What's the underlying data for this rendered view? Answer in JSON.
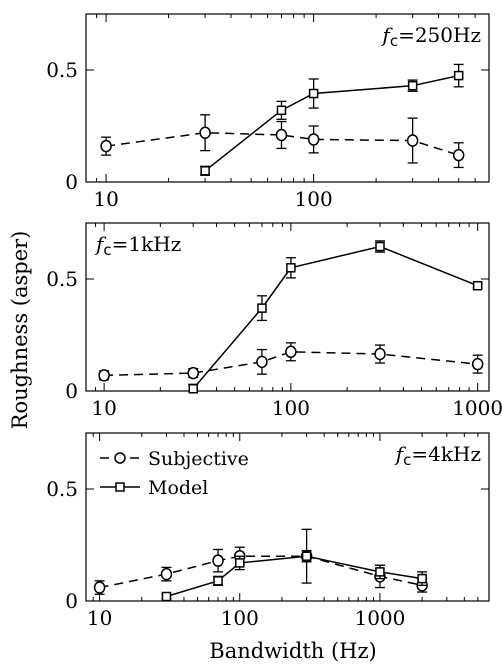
{
  "figure": {
    "ylabel": "Roughness (asper)",
    "xlabel": "Bandwidth (Hz)"
  },
  "legend": {
    "entries": [
      {
        "label": "Subjective",
        "series": "Subjective",
        "marker": "circle",
        "dash": "dashed"
      },
      {
        "label": "Model",
        "series": "Model",
        "marker": "square",
        "dash": "solid"
      }
    ],
    "placement": "top-left of bottom panel"
  },
  "colors": {
    "ink": "#000000",
    "background": "#ffffff"
  },
  "chart_data": [
    {
      "type": "line",
      "annotation": "fc=250Hz",
      "annotation_parts": {
        "f": "f",
        "sub": "c",
        "rest": "=250Hz"
      },
      "xscale": "log",
      "xlim": [
        8,
        700
      ],
      "ylim": [
        0,
        0.75
      ],
      "xticks": [
        10,
        100
      ],
      "xticklabels": [
        "10",
        "100"
      ],
      "yticks": [
        0,
        0.5
      ],
      "yticklabels": [
        "0",
        "0.5"
      ],
      "series": [
        {
          "name": "Subjective",
          "style": "dashed",
          "marker": "circle",
          "x": [
            10,
            30,
            70,
            100,
            300,
            500
          ],
          "y": [
            0.16,
            0.22,
            0.21,
            0.19,
            0.185,
            0.12
          ],
          "err": [
            0.04,
            0.08,
            0.06,
            0.06,
            0.1,
            0.055
          ]
        },
        {
          "name": "Model",
          "style": "solid",
          "marker": "square",
          "x": [
            30,
            70,
            100,
            300,
            500
          ],
          "y": [
            0.05,
            0.32,
            0.395,
            0.43,
            0.475
          ],
          "err": [
            0.02,
            0.04,
            0.065,
            0.025,
            0.05
          ]
        }
      ]
    },
    {
      "type": "line",
      "annotation": "fc=1kHz",
      "annotation_parts": {
        "f": "f",
        "sub": "c",
        "rest": "=1kHz"
      },
      "xscale": "log",
      "xlim": [
        8,
        1150
      ],
      "ylim": [
        0,
        0.75
      ],
      "xticks": [
        10,
        100,
        1000
      ],
      "xticklabels": [
        "10",
        "100",
        "1000"
      ],
      "yticks": [
        0,
        0.5
      ],
      "yticklabels": [
        "0",
        "0.5"
      ],
      "series": [
        {
          "name": "Subjective",
          "style": "dashed",
          "marker": "circle",
          "x": [
            10,
            30,
            70,
            100,
            300,
            1000
          ],
          "y": [
            0.07,
            0.08,
            0.13,
            0.175,
            0.165,
            0.12
          ],
          "err": [
            0.02,
            0.02,
            0.055,
            0.04,
            0.04,
            0.04
          ]
        },
        {
          "name": "Model",
          "style": "solid",
          "marker": "square",
          "x": [
            30,
            70,
            100,
            300,
            1000
          ],
          "y": [
            0.01,
            0.37,
            0.55,
            0.645,
            0.47
          ],
          "err": [
            0.02,
            0.055,
            0.045,
            0.025,
            0.01
          ]
        }
      ]
    },
    {
      "type": "line",
      "annotation": "fc=4kHz",
      "annotation_parts": {
        "f": "f",
        "sub": "c",
        "rest": "=4kHz"
      },
      "xscale": "log",
      "xlim": [
        8,
        6000
      ],
      "ylim": [
        0,
        0.75
      ],
      "xticks": [
        10,
        100,
        1000
      ],
      "xticklabels": [
        "10",
        "100",
        "1000"
      ],
      "yticks": [
        0,
        0.5
      ],
      "yticklabels": [
        "0",
        "0.5"
      ],
      "series": [
        {
          "name": "Subjective",
          "style": "dashed",
          "marker": "circle",
          "x": [
            10,
            30,
            70,
            100,
            300,
            1000,
            2000
          ],
          "y": [
            0.06,
            0.12,
            0.18,
            0.2,
            0.2,
            0.11,
            0.07
          ],
          "err": [
            0.03,
            0.03,
            0.05,
            0.04,
            0.12,
            0.05,
            0.03
          ]
        },
        {
          "name": "Model",
          "style": "solid",
          "marker": "square",
          "x": [
            30,
            70,
            100,
            300,
            1000,
            2000
          ],
          "y": [
            0.02,
            0.09,
            0.17,
            0.2,
            0.13,
            0.1
          ],
          "err": [
            0.01,
            0.02,
            0.03,
            0.025,
            0.03,
            0.03
          ]
        }
      ]
    }
  ]
}
